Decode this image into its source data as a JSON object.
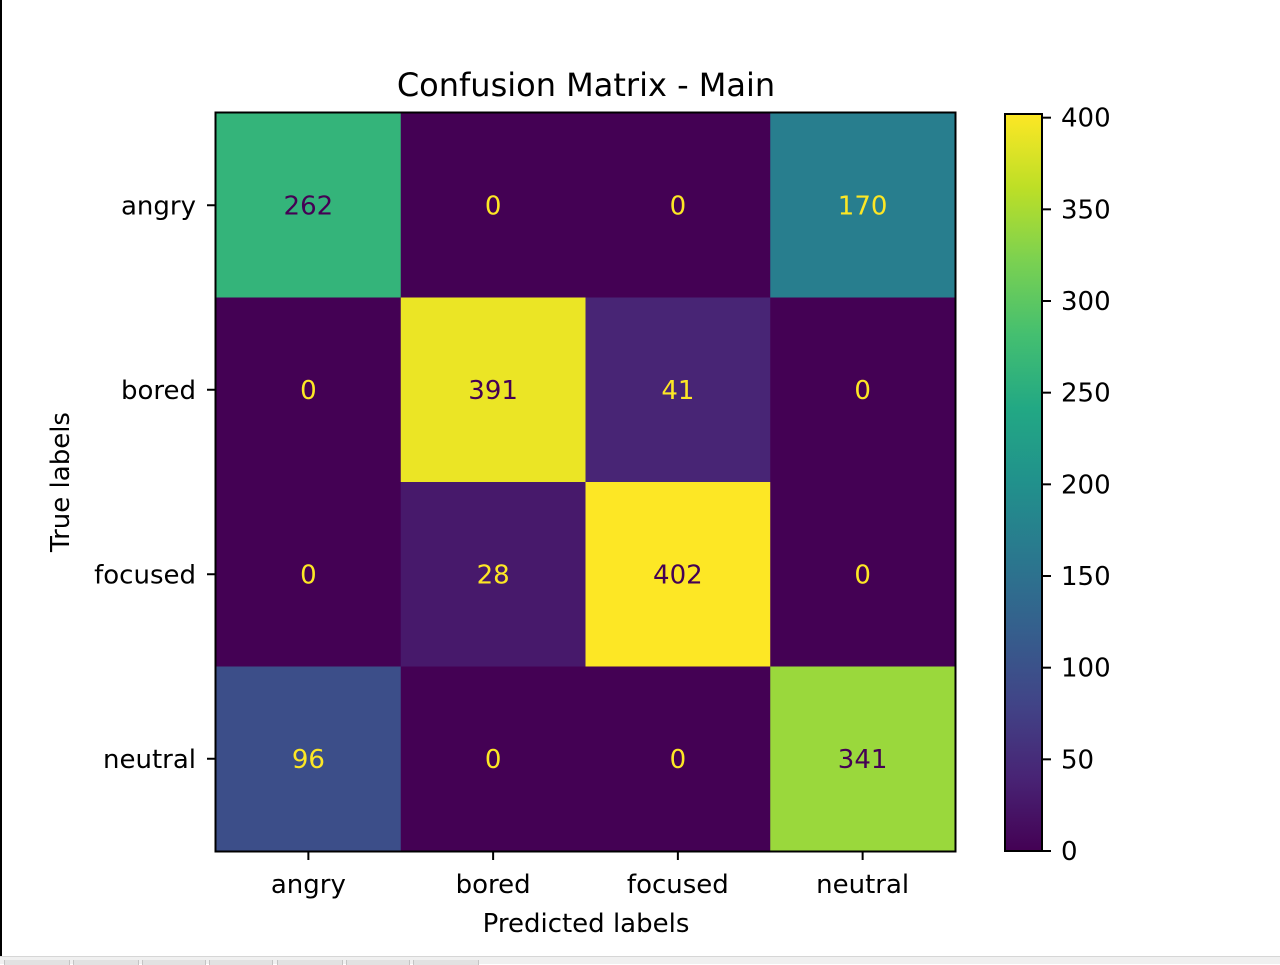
{
  "chart_data": {
    "type": "heatmap",
    "title": "Confusion Matrix - Main",
    "xlabel": "Predicted labels",
    "ylabel": "True labels",
    "x_categories": [
      "angry",
      "bored",
      "focused",
      "neutral"
    ],
    "y_categories": [
      "angry",
      "bored",
      "focused",
      "neutral"
    ],
    "values": [
      [
        262,
        0,
        0,
        170
      ],
      [
        0,
        391,
        41,
        0
      ],
      [
        0,
        28,
        402,
        0
      ],
      [
        96,
        0,
        0,
        341
      ]
    ],
    "colormap": "viridis",
    "color_range": [
      0,
      402
    ],
    "colorbar_ticks": [
      0,
      50,
      100,
      150,
      200,
      250,
      300,
      350,
      400
    ],
    "text_color_light": "#fde725",
    "text_color_dark": "#440154"
  }
}
